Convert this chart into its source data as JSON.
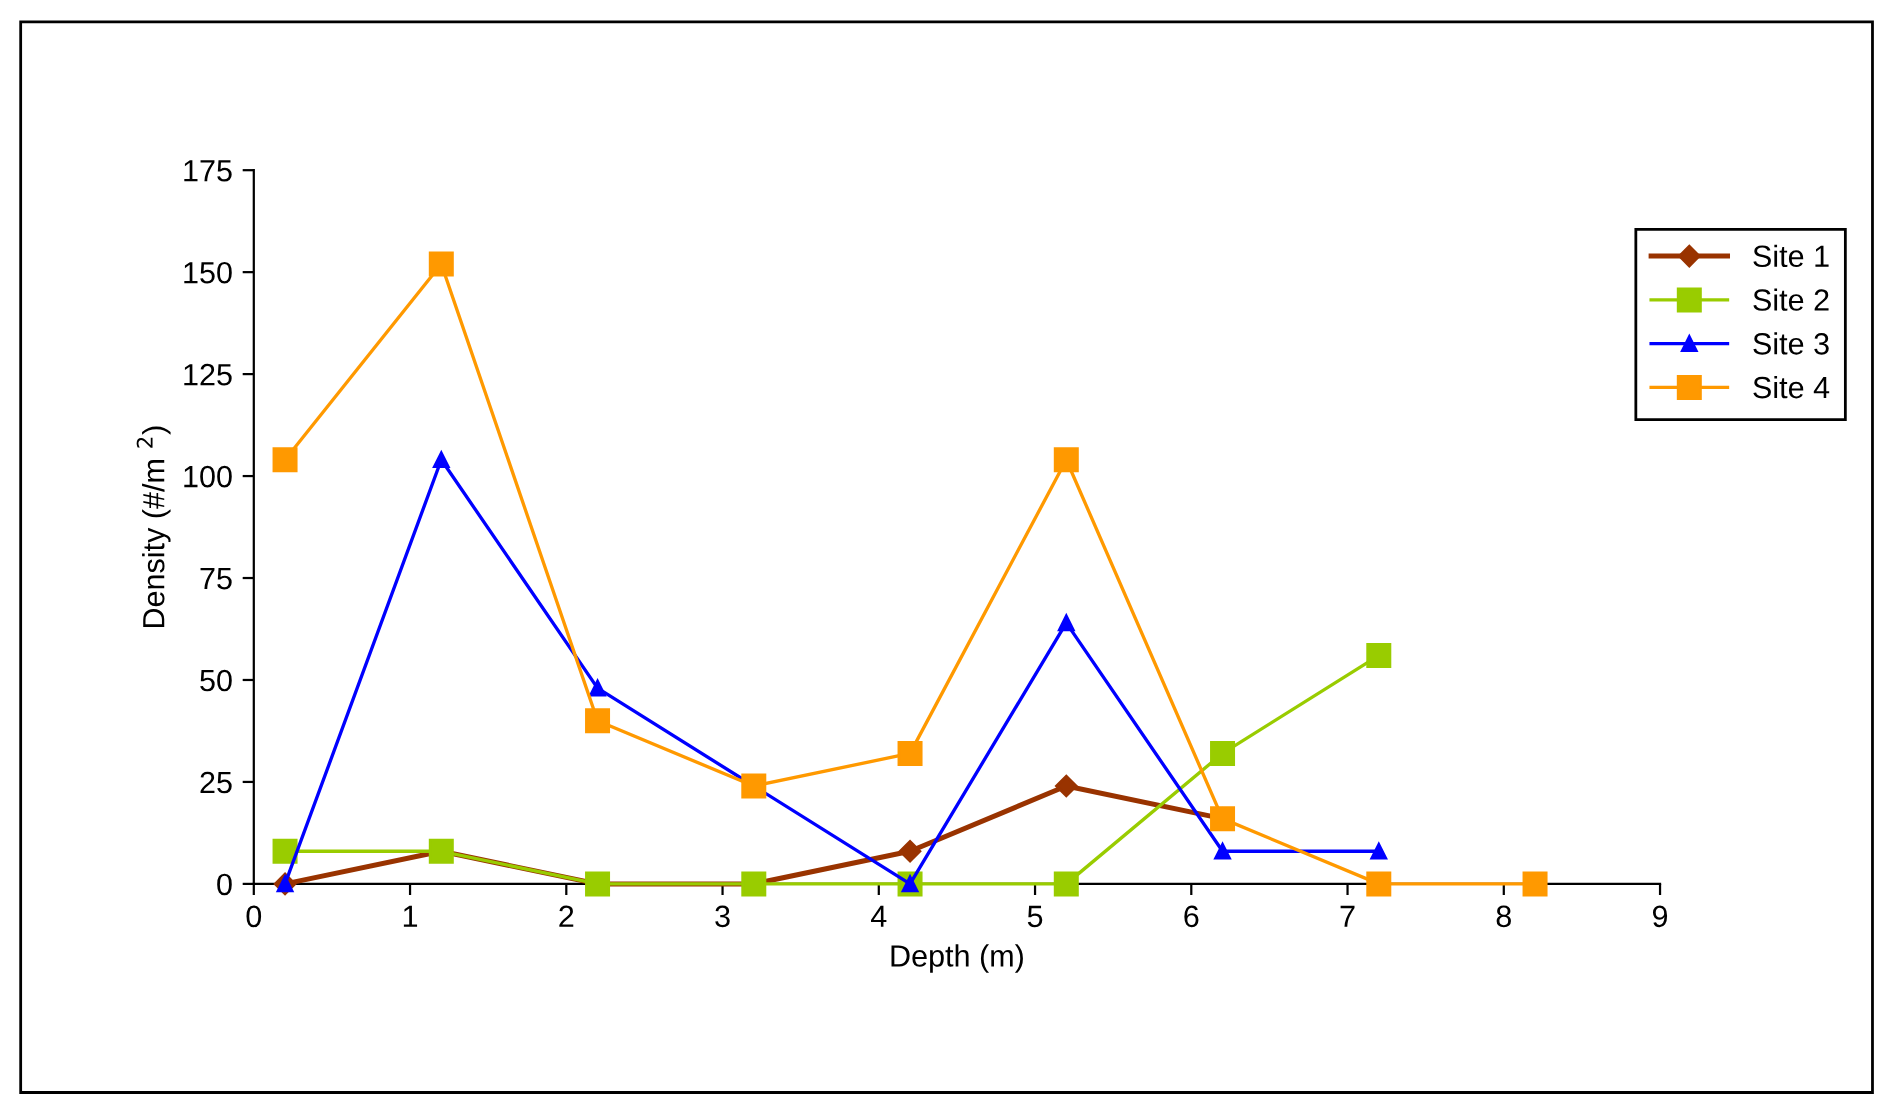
{
  "chart_data": {
    "type": "line",
    "xlabel": "Depth (m)",
    "ylabel": "Density (#/m $^{2}$)",
    "xlim": [
      0,
      9
    ],
    "xticks": [
      0,
      1,
      2,
      3,
      4,
      5,
      6,
      7,
      8,
      9
    ],
    "ylim": [
      0,
      175
    ],
    "yticks": [
      0,
      25,
      50,
      75,
      100,
      125,
      150,
      175
    ],
    "grid": false,
    "legend": "right",
    "series": [
      {
        "name": "Site 1",
        "color": "#993300",
        "marker": "diamond",
        "x": [
          0.2,
          1.2,
          2.2,
          3.2,
          4.2,
          5.2,
          6.2
        ],
        "values": [
          0,
          8,
          0,
          0,
          8,
          24,
          16
        ]
      },
      {
        "name": "Site 2",
        "color": "#99cc00",
        "marker": "square",
        "x": [
          0.2,
          1.2,
          2.2,
          3.2,
          4.2,
          5.2,
          6.2,
          7.2
        ],
        "values": [
          8,
          8,
          0,
          0,
          0,
          0,
          32,
          56
        ]
      },
      {
        "name": "Site 3",
        "color": "#0000ff",
        "marker": "triangle",
        "x": [
          0.2,
          1.2,
          2.2,
          3.2,
          4.2,
          5.2,
          6.2,
          7.2
        ],
        "values": [
          0,
          104,
          48,
          24,
          0,
          64,
          8,
          8
        ]
      },
      {
        "name": "Site 4",
        "color": "#ff9900",
        "marker": "square",
        "x": [
          0.2,
          1.2,
          2.2,
          3.2,
          4.2,
          5.2,
          6.2,
          7.2,
          8.2
        ],
        "values": [
          104,
          152,
          40,
          24,
          32,
          104,
          16,
          0,
          0
        ]
      }
    ]
  }
}
